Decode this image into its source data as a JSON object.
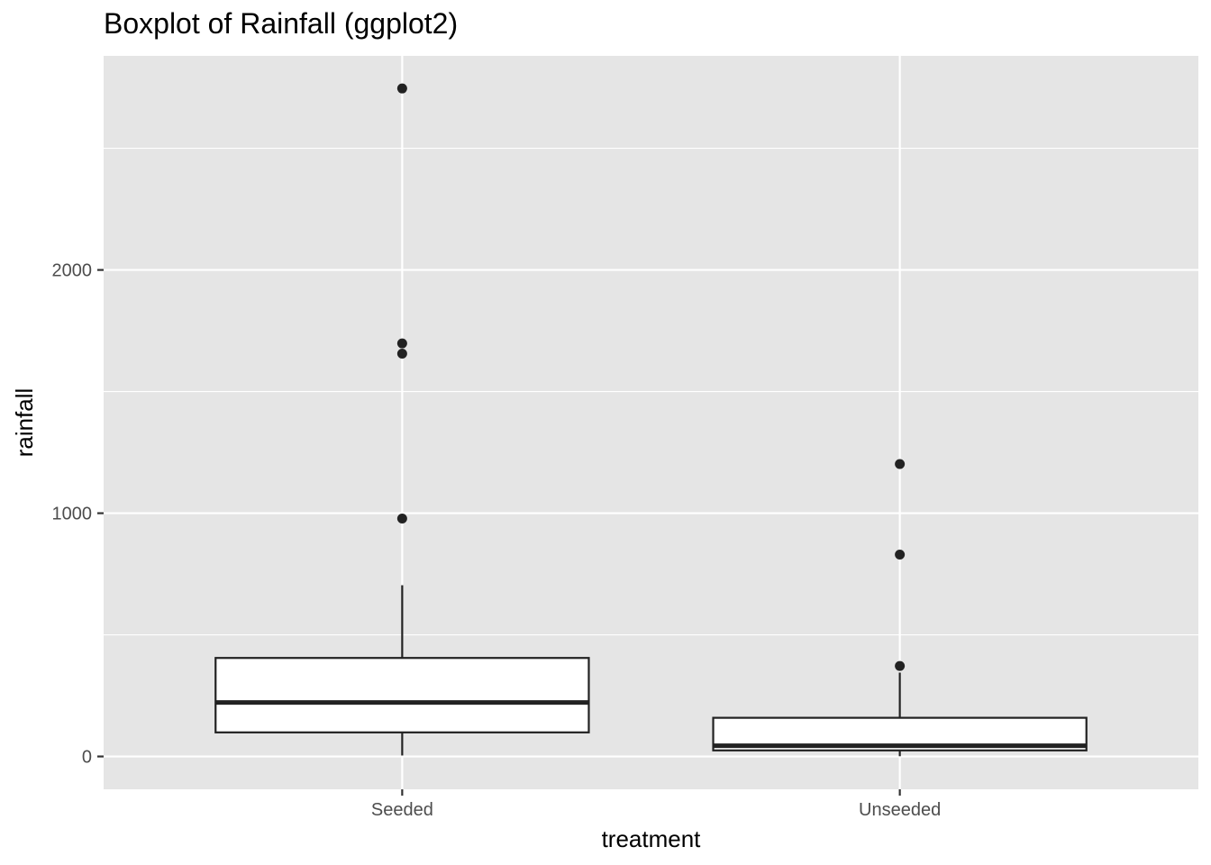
{
  "chart_data": {
    "type": "boxplot",
    "title": "Boxplot of Rainfall (ggplot2)",
    "xlabel": "treatment",
    "ylabel": "rainfall",
    "categories": [
      "Seeded",
      "Unseeded"
    ],
    "y_ticks": [
      0,
      1000,
      2000
    ],
    "y_tick_labels": [
      "0",
      "1000",
      "2000"
    ],
    "ylim": [
      -135,
      2880
    ],
    "grid": true,
    "boxes": [
      {
        "category": "Seeded",
        "whisker_low": 4,
        "q1": 99,
        "median": 222,
        "q3": 405,
        "whisker_high": 704,
        "outliers": [
          978,
          1656,
          1698,
          2746
        ]
      },
      {
        "category": "Unseeded",
        "whisker_low": 1,
        "q1": 25,
        "median": 44,
        "q3": 159,
        "whisker_high": 345,
        "outliers": [
          372,
          830,
          1202
        ]
      }
    ]
  },
  "colors": {
    "panel_background": "#e5e5e5",
    "grid_line": "#ffffff",
    "box_fill": "#ffffff",
    "box_stroke": "#222222",
    "tick_text": "#4d4d4d",
    "axis_title": "#000000"
  }
}
